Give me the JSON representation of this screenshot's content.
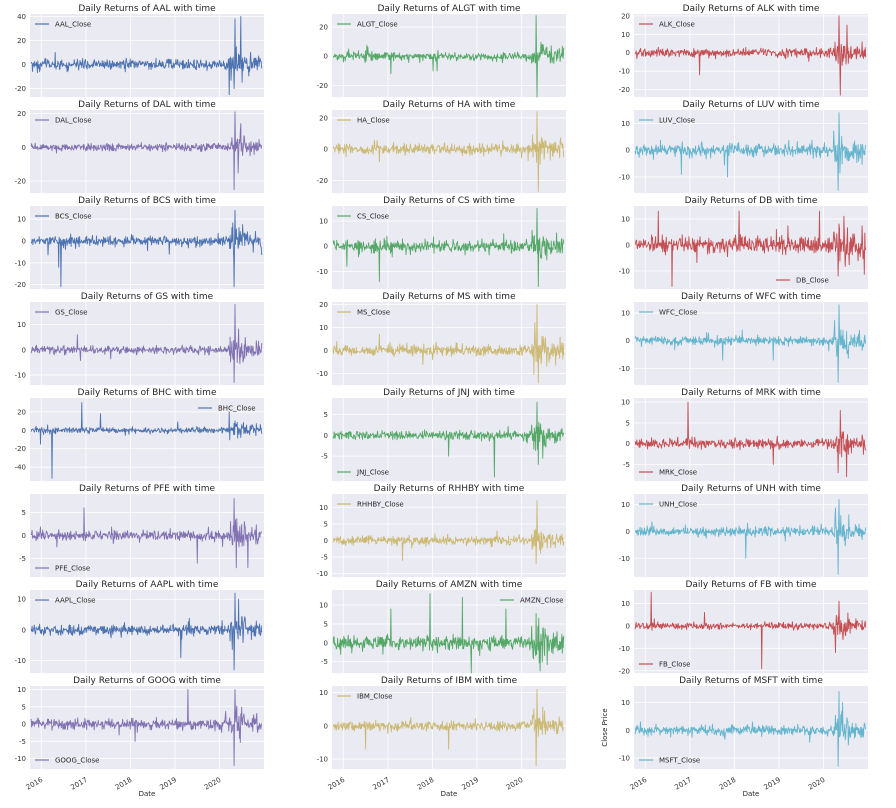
{
  "chart_data": {
    "type": "line",
    "xlabel": "Date",
    "x_ticks": [
      "2016",
      "2017",
      "2018",
      "2019",
      "2020"
    ],
    "x_range": [
      "2015-10-01",
      "2020-12-31"
    ],
    "y_label_on_last": "Close Price",
    "colors": {
      "blue": "#4c72b0",
      "green": "#55a868",
      "red": "#c44e52",
      "purple": "#8172b2",
      "yellow": "#ccb974",
      "cyan": "#64b5cd"
    },
    "panels": [
      {
        "title": "Daily Returns of AAL with time",
        "series": "AAL_Close",
        "color": "#4c72b0",
        "ylim": [
          -27,
          42
        ],
        "yticks": [
          -20,
          0,
          20,
          40
        ],
        "legend": "top-left",
        "amp": 4,
        "spikes": [
          [
            0.885,
            38
          ],
          [
            0.86,
            -25
          ],
          [
            0.91,
            40
          ],
          [
            0.88,
            -20
          ]
        ]
      },
      {
        "title": "Daily Returns of ALGT with time",
        "series": "ALGT_Close",
        "color": "#55a868",
        "ylim": [
          -28,
          29
        ],
        "yticks": [
          -20,
          0,
          20
        ],
        "legend": "top-left",
        "amp": 2.5,
        "spikes": [
          [
            0.88,
            28
          ],
          [
            0.885,
            -28
          ],
          [
            0.25,
            -12
          ],
          [
            0.45,
            -10
          ]
        ]
      },
      {
        "title": "Daily Returns of ALK with time",
        "series": "ALK_Close",
        "color": "#c44e52",
        "ylim": [
          -24,
          21
        ],
        "yticks": [
          -20,
          -10,
          0,
          10,
          20
        ],
        "legend": "top-left",
        "amp": 2,
        "spikes": [
          [
            0.885,
            20
          ],
          [
            0.89,
            -23
          ],
          [
            0.28,
            -12
          ],
          [
            0.92,
            15
          ]
        ]
      },
      {
        "title": "Daily Returns of DAL with time",
        "series": "DAL_Close",
        "color": "#8172b2",
        "ylim": [
          -27,
          22
        ],
        "yticks": [
          -20,
          0,
          20
        ],
        "legend": "top-left",
        "amp": 2,
        "spikes": [
          [
            0.885,
            21
          ],
          [
            0.88,
            -25
          ],
          [
            0.91,
            14
          ]
        ]
      },
      {
        "title": "Daily Returns of HA with time",
        "series": "HA_Close",
        "color": "#ccb974",
        "ylim": [
          -28,
          25
        ],
        "yticks": [
          -20,
          0,
          20
        ],
        "legend": "top-left",
        "amp": 3,
        "spikes": [
          [
            0.885,
            24
          ],
          [
            0.89,
            -27
          ],
          [
            0.2,
            -8
          ]
        ]
      },
      {
        "title": "Daily Returns of LUV with time",
        "series": "LUV_Close",
        "color": "#64b5cd",
        "ylim": [
          -16,
          15
        ],
        "yticks": [
          -10,
          0,
          10
        ],
        "legend": "top-left",
        "amp": 2,
        "spikes": [
          [
            0.885,
            14
          ],
          [
            0.88,
            -15
          ],
          [
            0.2,
            -9
          ],
          [
            0.4,
            -10
          ]
        ]
      },
      {
        "title": "Daily Returns of BCS with time",
        "series": "BCS_Close",
        "color": "#4c72b0",
        "ylim": [
          -22,
          16
        ],
        "yticks": [
          -20,
          -10,
          0,
          10
        ],
        "legend": "top-left",
        "amp": 2,
        "spikes": [
          [
            0.885,
            14
          ],
          [
            0.88,
            -21
          ],
          [
            0.13,
            -21
          ],
          [
            0.12,
            -12
          ]
        ]
      },
      {
        "title": "Daily Returns of CS with time",
        "series": "CS_Close",
        "color": "#55a868",
        "ylim": [
          -17,
          16
        ],
        "yticks": [
          -10,
          0,
          10
        ],
        "legend": "top-left",
        "amp": 2,
        "spikes": [
          [
            0.885,
            15
          ],
          [
            0.89,
            -16
          ],
          [
            0.2,
            -14
          ],
          [
            0.06,
            -8
          ]
        ]
      },
      {
        "title": "Daily Returns of DB with time",
        "series": "DB_Close",
        "color": "#c44e52",
        "ylim": [
          -17,
          15
        ],
        "yticks": [
          -10,
          0,
          10
        ],
        "legend": "bottom-right",
        "amp": 3,
        "spikes": [
          [
            0.1,
            13
          ],
          [
            0.16,
            -16
          ],
          [
            0.45,
            13
          ],
          [
            0.8,
            13
          ],
          [
            0.88,
            -12
          ]
        ]
      },
      {
        "title": "Daily Returns of GS with time",
        "series": "GS_Close",
        "color": "#8172b2",
        "ylim": [
          -14,
          19
        ],
        "yticks": [
          -10,
          0,
          10
        ],
        "legend": "top-left",
        "amp": 1.5,
        "spikes": [
          [
            0.885,
            18
          ],
          [
            0.88,
            -13
          ],
          [
            0.2,
            6
          ]
        ]
      },
      {
        "title": "Daily Returns of MS with time",
        "series": "MS_Close",
        "color": "#ccb974",
        "ylim": [
          -15,
          21
        ],
        "yticks": [
          -10,
          0,
          10,
          20
        ],
        "legend": "top-left",
        "amp": 2,
        "spikes": [
          [
            0.885,
            20
          ],
          [
            0.89,
            -14
          ],
          [
            0.2,
            7
          ]
        ]
      },
      {
        "title": "Daily Returns of WFC with time",
        "series": "WFC_Close",
        "color": "#64b5cd",
        "ylim": [
          -16,
          14
        ],
        "yticks": [
          -10,
          0,
          10
        ],
        "legend": "top-left",
        "amp": 1.5,
        "spikes": [
          [
            0.885,
            13
          ],
          [
            0.88,
            -15
          ],
          [
            0.38,
            -7
          ],
          [
            0.6,
            -7
          ]
        ]
      },
      {
        "title": "Daily Returns of BHC with time",
        "series": "BHC_Close",
        "color": "#4c72b0",
        "ylim": [
          -55,
          35
        ],
        "yticks": [
          -40,
          -20,
          0,
          20
        ],
        "legend": "top-right",
        "amp": 3,
        "spikes": [
          [
            0.09,
            -52
          ],
          [
            0.22,
            30
          ],
          [
            0.04,
            -15
          ],
          [
            0.3,
            18
          ],
          [
            0.86,
            20
          ]
        ]
      },
      {
        "title": "Daily Returns of JNJ with time",
        "series": "JNJ_Close",
        "color": "#55a868",
        "ylim": [
          -11,
          9
        ],
        "yticks": [
          -5,
          0,
          5
        ],
        "legend": "bottom-left",
        "amp": 1,
        "spikes": [
          [
            0.885,
            8
          ],
          [
            0.89,
            -7
          ],
          [
            0.7,
            -10
          ],
          [
            0.5,
            -5
          ]
        ]
      },
      {
        "title": "Daily Returns of MRK with time",
        "series": "MRK_Close",
        "color": "#c44e52",
        "ylim": [
          -9,
          11
        ],
        "yticks": [
          -5,
          0,
          5,
          10
        ],
        "legend": "bottom-left",
        "amp": 1,
        "spikes": [
          [
            0.23,
            10
          ],
          [
            0.89,
            8
          ],
          [
            0.88,
            -7
          ],
          [
            0.6,
            -5
          ]
        ]
      },
      {
        "title": "Daily Returns of PFE with time",
        "series": "PFE_Close",
        "color": "#8172b2",
        "ylim": [
          -9,
          9
        ],
        "yticks": [
          -5,
          0,
          5
        ],
        "legend": "bottom-left",
        "amp": 1,
        "spikes": [
          [
            0.88,
            8
          ],
          [
            0.89,
            -7
          ],
          [
            0.23,
            6
          ],
          [
            0.94,
            -7
          ],
          [
            0.72,
            -6
          ]
        ]
      },
      {
        "title": "Daily Returns of RHHBY with time",
        "series": "RHHBY_Close",
        "color": "#ccb974",
        "ylim": [
          -11,
          14
        ],
        "yticks": [
          -10,
          -5,
          0,
          5,
          10
        ],
        "legend": "top-left",
        "amp": 1.2,
        "spikes": [
          [
            0.885,
            12
          ],
          [
            0.88,
            -7
          ],
          [
            0.3,
            -6
          ]
        ]
      },
      {
        "title": "Daily Returns of UNH with time",
        "series": "UNH_Close",
        "color": "#64b5cd",
        "ylim": [
          -17,
          14
        ],
        "yticks": [
          -10,
          0,
          10
        ],
        "legend": "top-left",
        "amp": 1.5,
        "spikes": [
          [
            0.885,
            12
          ],
          [
            0.88,
            -16
          ],
          [
            0.48,
            -10
          ]
        ]
      },
      {
        "title": "Daily Returns of AAPL with time",
        "series": "AAPL_Close",
        "color": "#4c72b0",
        "ylim": [
          -14,
          13
        ],
        "yticks": [
          -10,
          0,
          10
        ],
        "legend": "top-left",
        "amp": 1.5,
        "spikes": [
          [
            0.885,
            12
          ],
          [
            0.88,
            -13
          ],
          [
            0.65,
            -9
          ],
          [
            0.9,
            10
          ]
        ]
      },
      {
        "title": "Daily Returns of AMZN with time",
        "series": "AMZN_Close",
        "color": "#55a868",
        "ylim": [
          -8,
          14
        ],
        "yticks": [
          -5,
          0,
          5,
          10
        ],
        "legend": "top-right",
        "amp": 1.6,
        "spikes": [
          [
            0.42,
            13
          ],
          [
            0.56,
            12
          ],
          [
            0.25,
            9
          ],
          [
            0.75,
            9
          ],
          [
            0.6,
            -8
          ]
        ]
      },
      {
        "title": "Daily Returns of FB with time",
        "series": "FB_Close",
        "color": "#c44e52",
        "ylim": [
          -21,
          16
        ],
        "yticks": [
          -20,
          -10,
          0,
          10
        ],
        "legend": "bottom-left",
        "amp": 1.3,
        "spikes": [
          [
            0.07,
            15
          ],
          [
            0.55,
            -19
          ],
          [
            0.885,
            11
          ],
          [
            0.3,
            6
          ]
        ]
      },
      {
        "title": "Daily Returns of GOOG with time",
        "series": "GOOG_Close",
        "color": "#8172b2",
        "ylim": [
          -13,
          11
        ],
        "yticks": [
          -10,
          -5,
          0,
          5,
          10
        ],
        "legend": "bottom-left",
        "amp": 1.3,
        "spikes": [
          [
            0.68,
            10
          ],
          [
            0.885,
            10
          ],
          [
            0.88,
            -12
          ],
          [
            0.45,
            -5
          ]
        ]
      },
      {
        "title": "Daily Returns of IBM with time",
        "series": "IBM_Close",
        "color": "#ccb974",
        "ylim": [
          -13,
          12
        ],
        "yticks": [
          -10,
          0,
          10
        ],
        "legend": "top-left",
        "amp": 1.3,
        "spikes": [
          [
            0.885,
            11
          ],
          [
            0.88,
            -12
          ],
          [
            0.14,
            -7
          ],
          [
            0.5,
            -7
          ]
        ]
      },
      {
        "title": "Daily Returns of MSFT with time",
        "series": "MSFT_Close",
        "color": "#64b5cd",
        "ylim": [
          -14,
          16
        ],
        "yticks": [
          -10,
          0,
          10
        ],
        "legend": "bottom-left",
        "amp": 1.5,
        "spikes": [
          [
            0.885,
            14
          ],
          [
            0.88,
            -13
          ],
          [
            0.9,
            10
          ]
        ]
      }
    ]
  }
}
